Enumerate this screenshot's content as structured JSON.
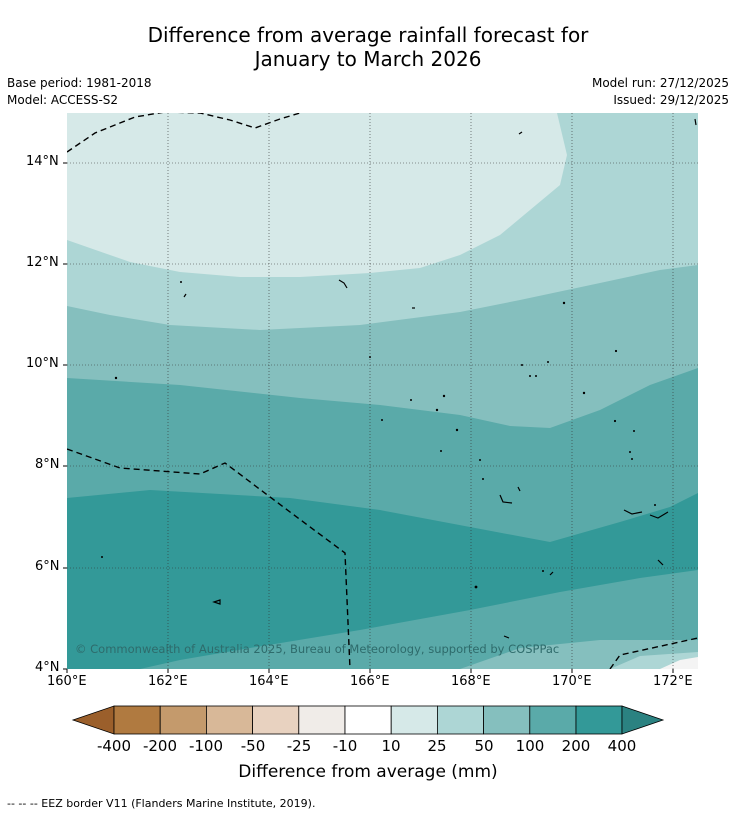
{
  "title_line1": "Difference from average rainfall forecast for",
  "title_line2": "January to March 2026",
  "base_period": "Base period: 1981-2018",
  "model": "Model: ACCESS-S2",
  "model_run": "Model run: 27/12/2025",
  "issued": "Issued: 29/12/2025",
  "copyright": "© Commonwealth of Australia 2025, Bureau of Meteorology, supported by COSPPac",
  "footnote": "-- -- -- EEZ border V11 (Flanders Marine Institute, 2019).",
  "lat_labels": [
    "14°N",
    "12°N",
    "10°N",
    "8°N",
    "6°N",
    "4°N"
  ],
  "lon_labels": [
    "160°E",
    "162°E",
    "164°E",
    "166°E",
    "168°E",
    "170°E",
    "172°E"
  ],
  "colorbar": {
    "title": "Difference from average (mm)",
    "tick_labels": [
      "-400",
      "-200",
      "-100",
      "-50",
      "-25",
      "-10",
      "10",
      "25",
      "50",
      "100",
      "200",
      "400"
    ],
    "colors": [
      "#9b5f2b",
      "#b07a40",
      "#c49a6c",
      "#d8b898",
      "#e8d2c0",
      "#f0ece8",
      "#ffffff",
      "#d6e9e8",
      "#add6d5",
      "#85bfbe",
      "#5aaaa9",
      "#339998",
      "#2b8281"
    ]
  },
  "chart_data": {
    "type": "heatmap",
    "xlim": [
      "160°E",
      "172.5°E"
    ],
    "ylim": [
      "4°N",
      "15°N"
    ],
    "grid": true,
    "contour_bands_mm": [
      "10 to 25",
      "25 to 50",
      "50 to 100",
      "100 to 200",
      "200 to 400"
    ],
    "pattern": "wetter than average everywhere, largest increases (200-400 mm) in the south around 5-7°N, smallest (10-25 mm) in the north-west"
  }
}
